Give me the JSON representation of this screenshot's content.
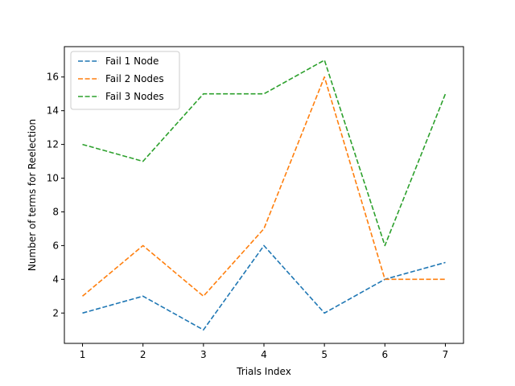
{
  "chart_data": {
    "type": "line",
    "title": "",
    "xlabel": "Trials Index",
    "ylabel": "Number of terms for Reelection",
    "x": [
      1,
      2,
      3,
      4,
      5,
      6,
      7
    ],
    "xlim": [
      0.7,
      7.3
    ],
    "ylim": [
      0.2,
      17.8
    ],
    "xticks": [
      1,
      2,
      3,
      4,
      5,
      6,
      7
    ],
    "yticks": [
      2,
      4,
      6,
      8,
      10,
      12,
      14,
      16
    ],
    "grid": false,
    "legend_position": "top-left",
    "line_style": "dashed",
    "series": [
      {
        "name": "Fail 1 Node",
        "color": "#1f77b4",
        "values": [
          2,
          3,
          1,
          6,
          2,
          4,
          5
        ]
      },
      {
        "name": "Fail 2 Nodes",
        "color": "#ff7f0e",
        "values": [
          3,
          6,
          3,
          7,
          16,
          4,
          4
        ]
      },
      {
        "name": "Fail 3 Nodes",
        "color": "#2ca02c",
        "values": [
          12,
          11,
          15,
          15,
          17,
          6,
          15
        ]
      }
    ]
  }
}
